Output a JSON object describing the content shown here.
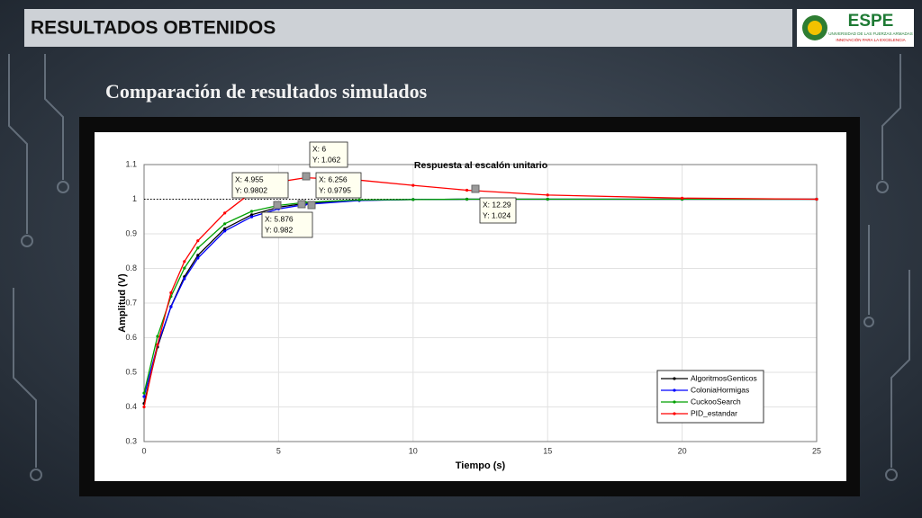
{
  "header": {
    "title": "RESULTADOS OBTENIDOS",
    "logo": {
      "name": "ESPE",
      "line1": "UNIVERSIDAD DE LAS FUERZAS ARMADAS",
      "line2": "INNOVACIÓN PARA LA EXCELENCIA"
    }
  },
  "slide_title": "Comparación de resultados simulados",
  "chart_data": {
    "type": "line",
    "title": "Respuesta al escalón unitario",
    "x_label": "Tiempo (s)",
    "y_label": "Amplitud (V)",
    "x": [
      0,
      0.5,
      1,
      1.5,
      2,
      3,
      4,
      5,
      6,
      8,
      10,
      12,
      15,
      20,
      25
    ],
    "series": [
      {
        "name": "AlgoritmosGenticos",
        "color": "#000000",
        "values": [
          0.41,
          0.573,
          0.69,
          0.776,
          0.838,
          0.915,
          0.955,
          0.977,
          0.988,
          0.997,
          0.999,
          1,
          1,
          1,
          1
        ]
      },
      {
        "name": "ColoniaHormigas",
        "color": "#0000ff",
        "values": [
          0.43,
          0.579,
          0.689,
          0.77,
          0.83,
          0.908,
          0.949,
          0.972,
          0.985,
          0.996,
          0.999,
          1,
          1,
          1,
          1
        ]
      },
      {
        "name": "CuckooSearch",
        "color": "#00a000",
        "values": [
          0.44,
          0.604,
          0.719,
          0.801,
          0.859,
          0.929,
          0.965,
          0.982,
          0.991,
          0.998,
          0.999,
          1,
          1,
          1,
          1
        ]
      },
      {
        "name": "PID_estandar",
        "color": "#ff0000",
        "values": [
          0.4,
          0.58,
          0.73,
          0.82,
          0.88,
          0.96,
          1.02,
          1.05,
          1.062,
          1.055,
          1.04,
          1.026,
          1.012,
          1.003,
          1
        ]
      }
    ],
    "reference_line": 1,
    "xlim": [
      0,
      25
    ],
    "xticks": [
      0,
      5,
      10,
      15,
      20,
      25
    ],
    "ylim": [
      0.3,
      1.1
    ],
    "yticks": [
      0.3,
      0.4,
      0.5,
      0.6,
      0.7,
      0.8,
      0.9,
      1,
      1.1
    ],
    "grid": true,
    "legend": "lower right",
    "annotations": [
      {
        "x_text": "X: 4.955",
        "y_text": "Y: 0.9802"
      },
      {
        "x_text": "X: 5.876",
        "y_text": "Y: 0.982"
      },
      {
        "x_text": "X: 6",
        "y_text": "Y: 1.062"
      },
      {
        "x_text": "X: 6.256",
        "y_text": "Y: 0.9795"
      },
      {
        "x_text": "X: 12.29",
        "y_text": "Y: 1.024"
      }
    ]
  }
}
